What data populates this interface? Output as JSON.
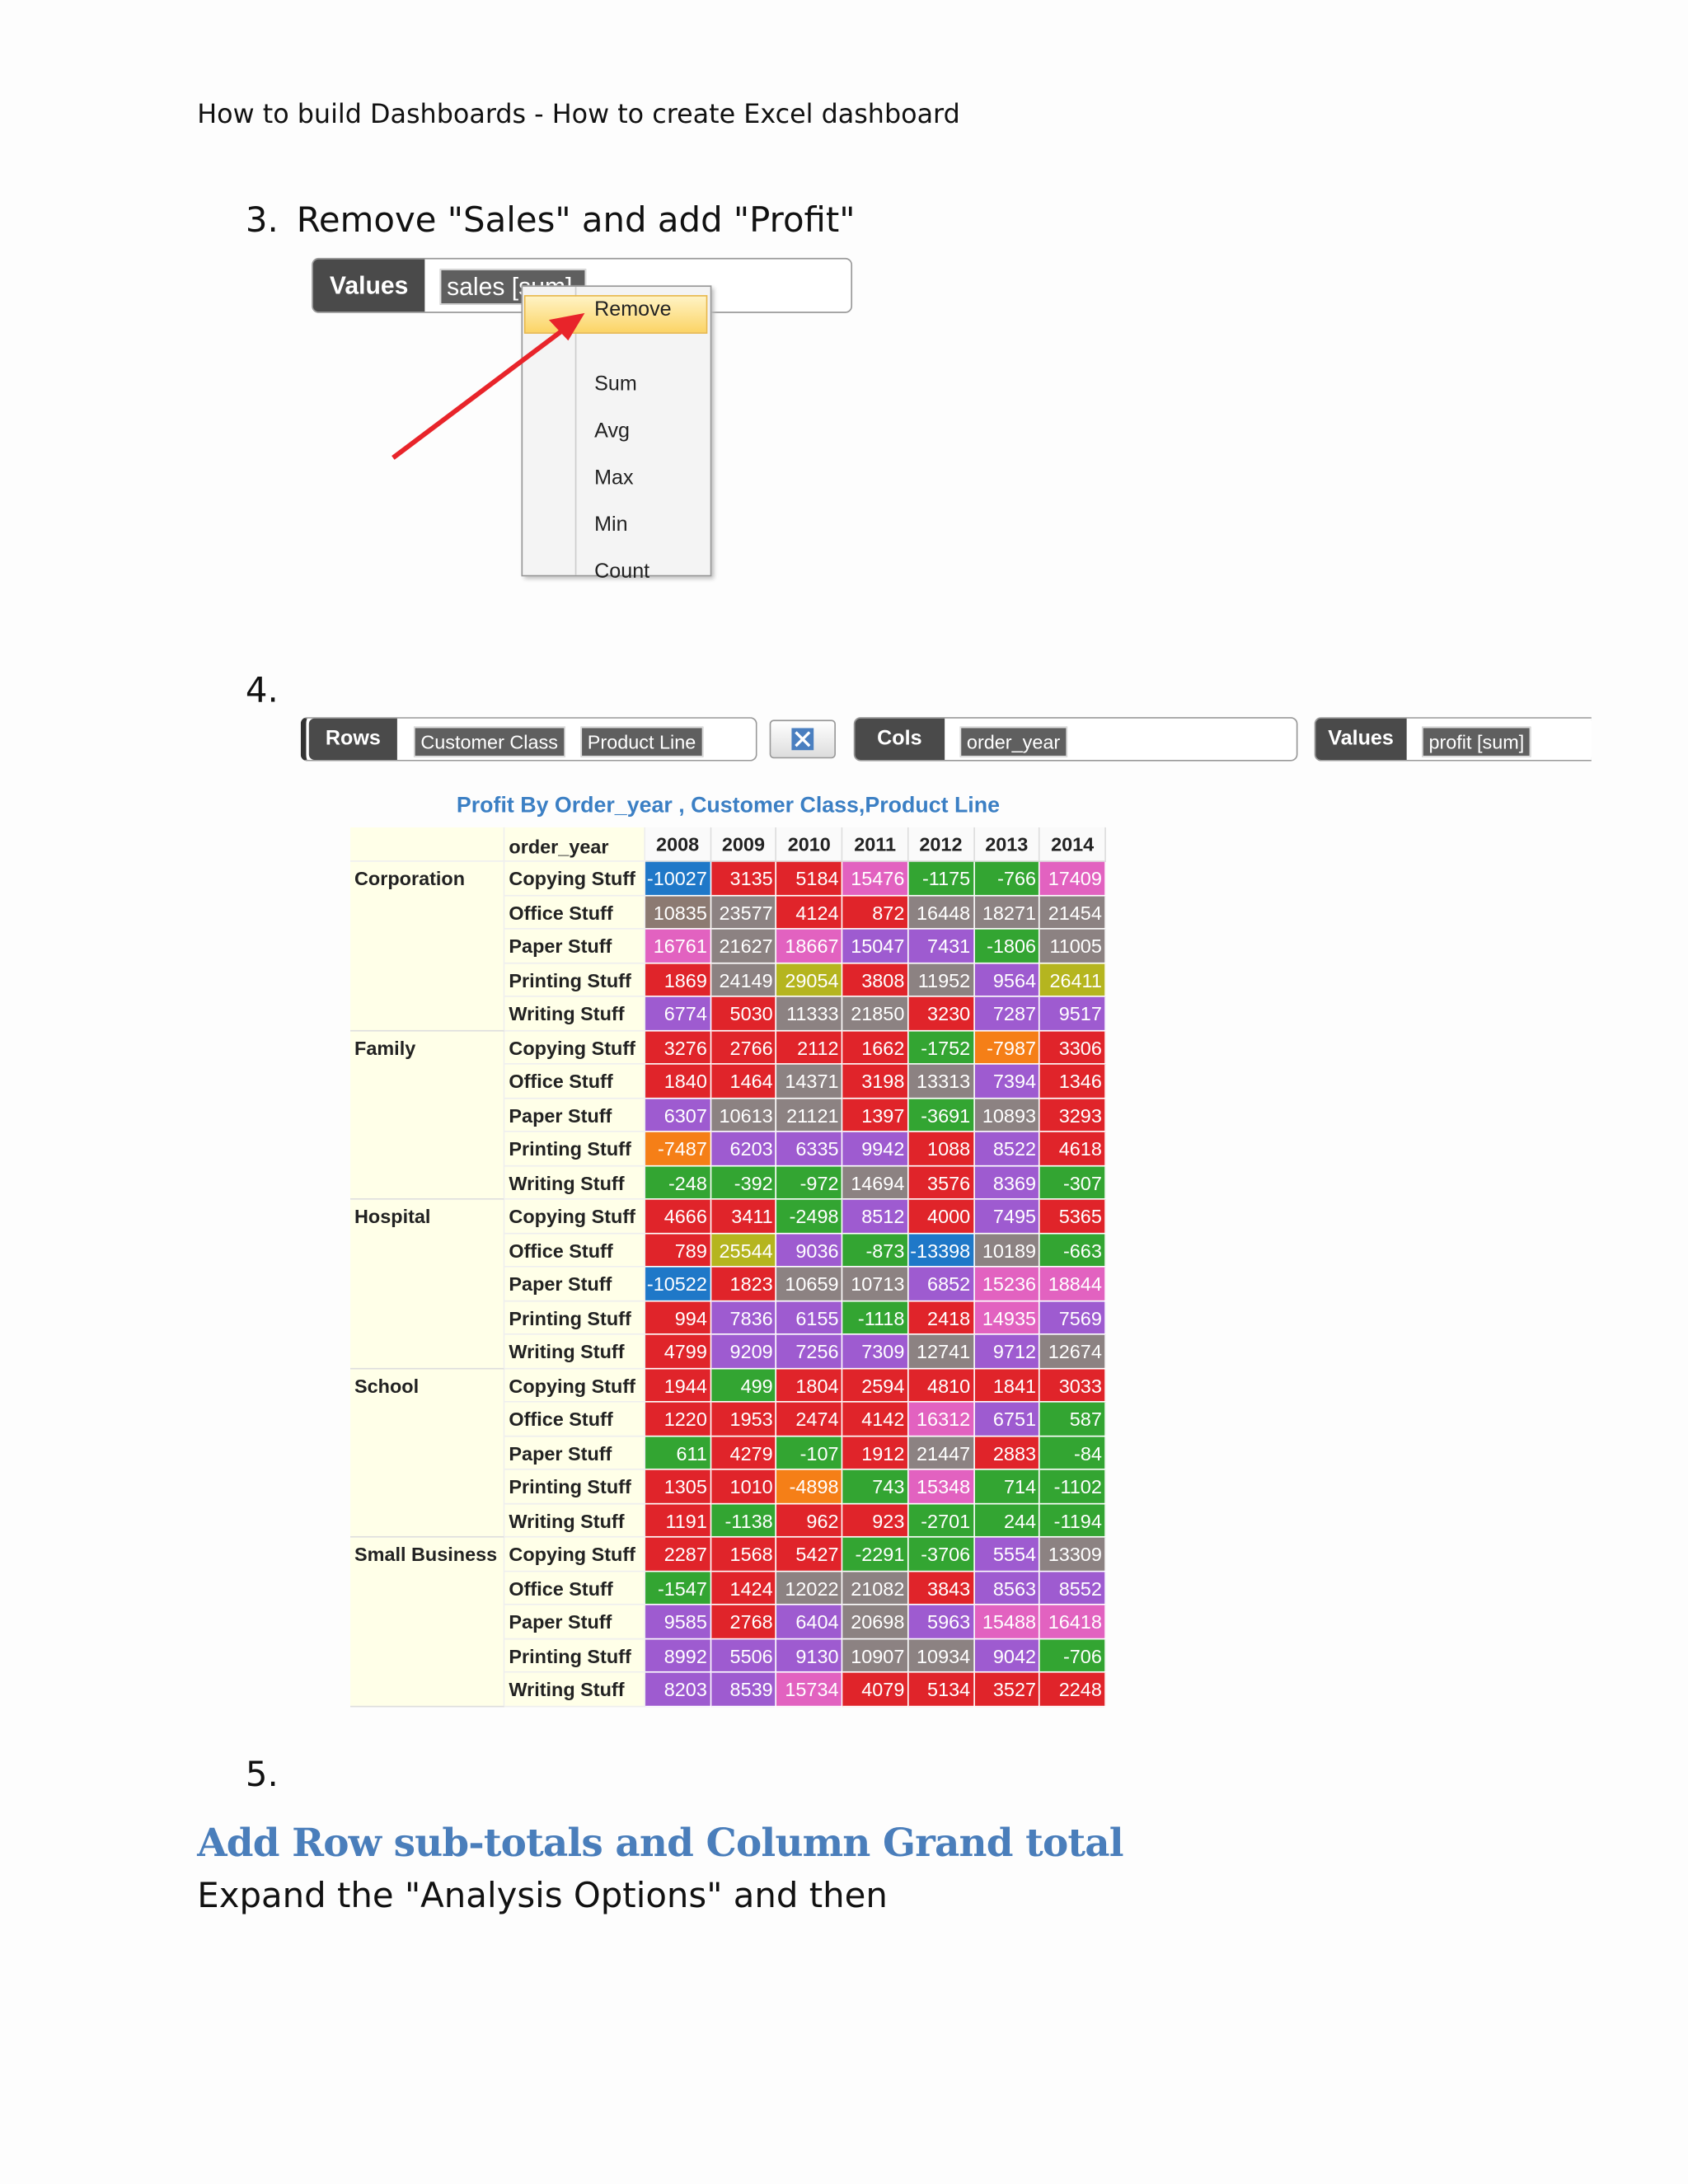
{
  "header": {
    "title": "How to build Dashboards - How to create Excel dashboard"
  },
  "step3": {
    "number": "3.",
    "text": "Remove \"Sales\" and add \"Profit\"",
    "values_label": "Values",
    "chip": "sales [sum]",
    "menu": [
      "Remove",
      "Sum",
      "Avg",
      "Max",
      "Min",
      "Count"
    ]
  },
  "step4": {
    "number": "4.",
    "rows_label": "Rows",
    "rows_chips": [
      "Customer Class",
      "Product Line"
    ],
    "cols_label": "Cols",
    "cols_chips": [
      "order_year"
    ],
    "values_label": "Values",
    "values_chips": [
      "profit [sum]"
    ]
  },
  "table": {
    "title": "Profit By Order_year , Customer Class,Product Line",
    "corner_label": "order_year",
    "years": [
      "2008",
      "2009",
      "2010",
      "2011",
      "2012",
      "2013",
      "2014"
    ],
    "groups": [
      {
        "name": "Corporation",
        "rows": [
          {
            "product": "Copying Stuff",
            "values": [
              -10027,
              3135,
              5184,
              15476,
              -1175,
              -766,
              17409
            ],
            "colors": [
              "#1f78c8",
              "#e0242a",
              "#e0242a",
              "#e262c0",
              "#33a532",
              "#33a532",
              "#e262c0"
            ]
          },
          {
            "product": "Office Stuff",
            "values": [
              10835,
              23577,
              4124,
              872,
              16448,
              18271,
              21454
            ],
            "colors": [
              "#8c7a72",
              "#8c8282",
              "#e0242a",
              "#e0242a",
              "#8c8282",
              "#8c8282",
              "#8c8282"
            ]
          },
          {
            "product": "Paper Stuff",
            "values": [
              16761,
              21627,
              18667,
              15047,
              7431,
              -1806,
              11005
            ],
            "colors": [
              "#e262c0",
              "#8c8282",
              "#e262c0",
              "#9e5bd0",
              "#9e5bd0",
              "#33a532",
              "#8c8282"
            ]
          },
          {
            "product": "Printing Stuff",
            "values": [
              1869,
              24149,
              29054,
              3808,
              11952,
              9564,
              26411
            ],
            "colors": [
              "#e0242a",
              "#8c8282",
              "#b5b51f",
              "#e0242a",
              "#8c8282",
              "#9e5bd0",
              "#b5b51f"
            ]
          },
          {
            "product": "Writing Stuff",
            "values": [
              6774,
              5030,
              11333,
              21850,
              3230,
              7287,
              9517
            ],
            "colors": [
              "#9e5bd0",
              "#e0242a",
              "#8c8282",
              "#8c8282",
              "#e0242a",
              "#9e5bd0",
              "#9e5bd0"
            ]
          }
        ]
      },
      {
        "name": "Family",
        "rows": [
          {
            "product": "Copying Stuff",
            "values": [
              3276,
              2766,
              2112,
              1662,
              -1752,
              -7987,
              3306
            ],
            "colors": [
              "#e0242a",
              "#e0242a",
              "#e0242a",
              "#e0242a",
              "#33a532",
              "#f57f17",
              "#e0242a"
            ]
          },
          {
            "product": "Office Stuff",
            "values": [
              1840,
              1464,
              14371,
              3198,
              13313,
              7394,
              1346
            ],
            "colors": [
              "#e0242a",
              "#e0242a",
              "#8c8282",
              "#e0242a",
              "#8c8282",
              "#9e5bd0",
              "#e0242a"
            ]
          },
          {
            "product": "Paper Stuff",
            "values": [
              6307,
              10613,
              21121,
              1397,
              -3691,
              10893,
              3293
            ],
            "colors": [
              "#9e5bd0",
              "#8c8282",
              "#8c8282",
              "#e0242a",
              "#33a532",
              "#8c8282",
              "#e0242a"
            ]
          },
          {
            "product": "Printing Stuff",
            "values": [
              -7487,
              6203,
              6335,
              9942,
              1088,
              8522,
              4618
            ],
            "colors": [
              "#f57f17",
              "#9e5bd0",
              "#9e5bd0",
              "#9e5bd0",
              "#e0242a",
              "#9e5bd0",
              "#e0242a"
            ]
          },
          {
            "product": "Writing Stuff",
            "values": [
              -248,
              -392,
              -972,
              14694,
              3576,
              8369,
              -307
            ],
            "colors": [
              "#33a532",
              "#33a532",
              "#33a532",
              "#8c8282",
              "#e0242a",
              "#9e5bd0",
              "#33a532"
            ]
          }
        ]
      },
      {
        "name": "Hospital",
        "rows": [
          {
            "product": "Copying Stuff",
            "values": [
              4666,
              3411,
              -2498,
              8512,
              4000,
              7495,
              5365
            ],
            "colors": [
              "#e0242a",
              "#e0242a",
              "#33a532",
              "#9e5bd0",
              "#e0242a",
              "#9e5bd0",
              "#e0242a"
            ]
          },
          {
            "product": "Office Stuff",
            "values": [
              789,
              25544,
              9036,
              -873,
              -13398,
              10189,
              -663
            ],
            "colors": [
              "#e0242a",
              "#b5b51f",
              "#9e5bd0",
              "#33a532",
              "#1f78c8",
              "#8c8282",
              "#33a532"
            ]
          },
          {
            "product": "Paper Stuff",
            "values": [
              -10522,
              1823,
              10659,
              10713,
              6852,
              15236,
              18844
            ],
            "colors": [
              "#1f78c8",
              "#e0242a",
              "#8c8282",
              "#8c8282",
              "#9e5bd0",
              "#e262c0",
              "#e262c0"
            ]
          },
          {
            "product": "Printing Stuff",
            "values": [
              994,
              7836,
              6155,
              -1118,
              2418,
              14935,
              7569
            ],
            "colors": [
              "#e0242a",
              "#9e5bd0",
              "#9e5bd0",
              "#33a532",
              "#e0242a",
              "#e262c0",
              "#9e5bd0"
            ]
          },
          {
            "product": "Writing Stuff",
            "values": [
              4799,
              9209,
              7256,
              7309,
              12741,
              9712,
              12674
            ],
            "colors": [
              "#e0242a",
              "#9e5bd0",
              "#9e5bd0",
              "#9e5bd0",
              "#8c8282",
              "#9e5bd0",
              "#8c8282"
            ]
          }
        ]
      },
      {
        "name": "School",
        "rows": [
          {
            "product": "Copying Stuff",
            "values": [
              1944,
              499,
              1804,
              2594,
              4810,
              1841,
              3033
            ],
            "colors": [
              "#e0242a",
              "#33a532",
              "#e0242a",
              "#e0242a",
              "#e0242a",
              "#e0242a",
              "#e0242a"
            ]
          },
          {
            "product": "Office Stuff",
            "values": [
              1220,
              1953,
              2474,
              4142,
              16312,
              6751,
              587
            ],
            "colors": [
              "#e0242a",
              "#e0242a",
              "#e0242a",
              "#e0242a",
              "#e262c0",
              "#9e5bd0",
              "#33a532"
            ]
          },
          {
            "product": "Paper Stuff",
            "values": [
              611,
              4279,
              -107,
              1912,
              21447,
              2883,
              -84
            ],
            "colors": [
              "#33a532",
              "#e0242a",
              "#33a532",
              "#e0242a",
              "#8c8282",
              "#e0242a",
              "#33a532"
            ]
          },
          {
            "product": "Printing Stuff",
            "values": [
              1305,
              1010,
              -4898,
              743,
              15348,
              714,
              -1102
            ],
            "colors": [
              "#e0242a",
              "#e0242a",
              "#f57f17",
              "#33a532",
              "#e262c0",
              "#33a532",
              "#33a532"
            ]
          },
          {
            "product": "Writing Stuff",
            "values": [
              1191,
              -1138,
              962,
              923,
              -2701,
              244,
              -1194
            ],
            "colors": [
              "#e0242a",
              "#33a532",
              "#e0242a",
              "#e0242a",
              "#33a532",
              "#33a532",
              "#33a532"
            ]
          }
        ]
      },
      {
        "name": "Small Business",
        "rows": [
          {
            "product": "Copying Stuff",
            "values": [
              2287,
              1568,
              5427,
              -2291,
              -3706,
              5554,
              13309
            ],
            "colors": [
              "#e0242a",
              "#e0242a",
              "#e0242a",
              "#33a532",
              "#33a532",
              "#9e5bd0",
              "#8c8282"
            ]
          },
          {
            "product": "Office Stuff",
            "values": [
              -1547,
              1424,
              12022,
              21082,
              3843,
              8563,
              8552
            ],
            "colors": [
              "#33a532",
              "#e0242a",
              "#8c8282",
              "#8c8282",
              "#e0242a",
              "#9e5bd0",
              "#9e5bd0"
            ]
          },
          {
            "product": "Paper Stuff",
            "values": [
              9585,
              2768,
              6404,
              20698,
              5963,
              15488,
              16418
            ],
            "colors": [
              "#9e5bd0",
              "#e0242a",
              "#9e5bd0",
              "#8c8282",
              "#9e5bd0",
              "#e262c0",
              "#e262c0"
            ]
          },
          {
            "product": "Printing Stuff",
            "values": [
              8992,
              5506,
              9130,
              10907,
              10934,
              9042,
              -706
            ],
            "colors": [
              "#9e5bd0",
              "#9e5bd0",
              "#9e5bd0",
              "#8c8282",
              "#8c8282",
              "#9e5bd0",
              "#33a532"
            ]
          },
          {
            "product": "Writing Stuff",
            "values": [
              8203,
              8539,
              15734,
              4079,
              5134,
              3527,
              2248
            ],
            "colors": [
              "#9e5bd0",
              "#9e5bd0",
              "#e262c0",
              "#e0242a",
              "#e0242a",
              "#e0242a",
              "#e0242a"
            ]
          }
        ]
      }
    ]
  },
  "step5": {
    "number": "5.",
    "heading": "Add Row sub-totals and Column Grand total",
    "text": "Expand the \"Analysis Options\" and then"
  }
}
